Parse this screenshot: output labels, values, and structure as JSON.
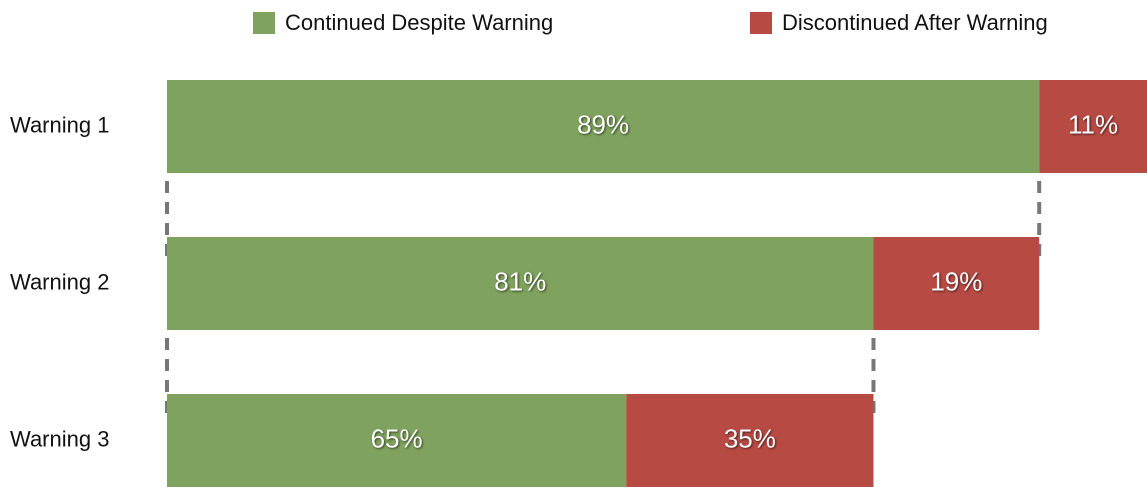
{
  "chart_data": {
    "type": "funnel_bar",
    "categories": [
      "Warning 1",
      "Warning 2",
      "Warning 3"
    ],
    "series": [
      {
        "name": "Continued Despite Warning",
        "color": "#7fa35e",
        "values": [
          89,
          81,
          65
        ],
        "value_labels": [
          "89%",
          "81%",
          "65%"
        ]
      },
      {
        "name": "Discontinued After Warning",
        "color": "#b84a44",
        "values": [
          11,
          19,
          35
        ],
        "value_labels": [
          "11%",
          "19%",
          "35%"
        ]
      }
    ],
    "legend": "top"
  }
}
